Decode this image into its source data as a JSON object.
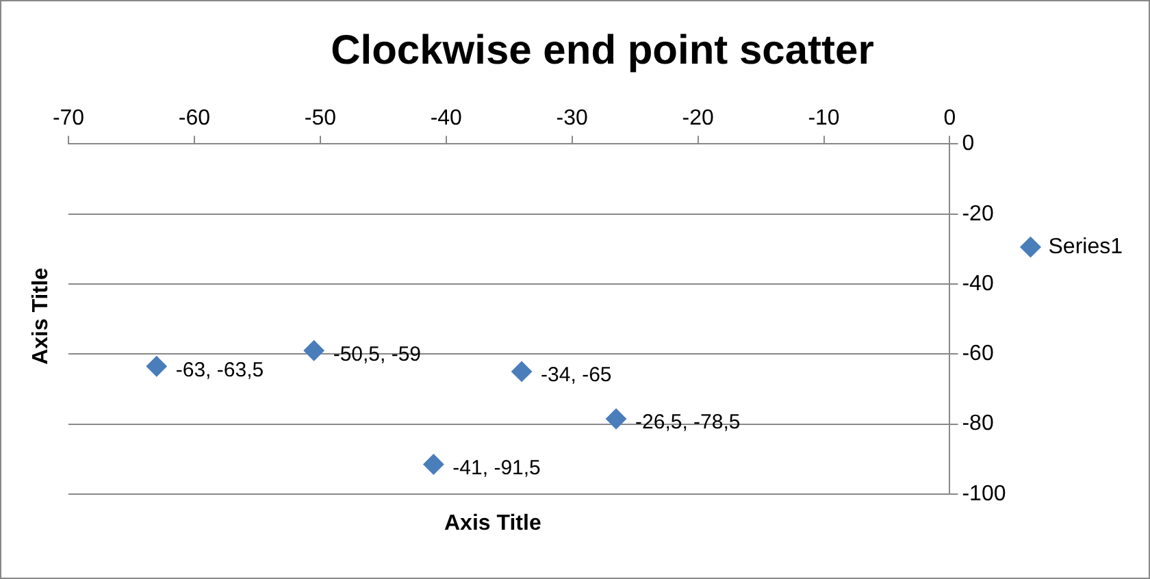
{
  "chart_data": {
    "type": "scatter",
    "title": "Clockwise end point scatter",
    "xlabel": "Axis Title",
    "ylabel": "Axis Title",
    "series": [
      {
        "name": "Series1",
        "color": "#4a7ebb",
        "x": [
          -63,
          -50.5,
          -34,
          -26.5,
          -41
        ],
        "values": [
          -63.5,
          -59,
          -65,
          -78.5,
          -91.5
        ],
        "value_labels": [
          "-63, -63,5",
          "-50,5, -59",
          "-34, -65",
          "-26,5, -78,5",
          "-41, -91,5"
        ]
      }
    ],
    "xlim": [
      -70,
      0
    ],
    "xticks": [
      -70,
      -60,
      -50,
      -40,
      -30,
      -20,
      -10,
      0
    ],
    "ylim": [
      -100,
      0
    ],
    "yticks": [
      0,
      -20,
      -40,
      -60,
      -80,
      -100
    ],
    "grid": "y",
    "legend": "right",
    "marker": "diamond"
  }
}
